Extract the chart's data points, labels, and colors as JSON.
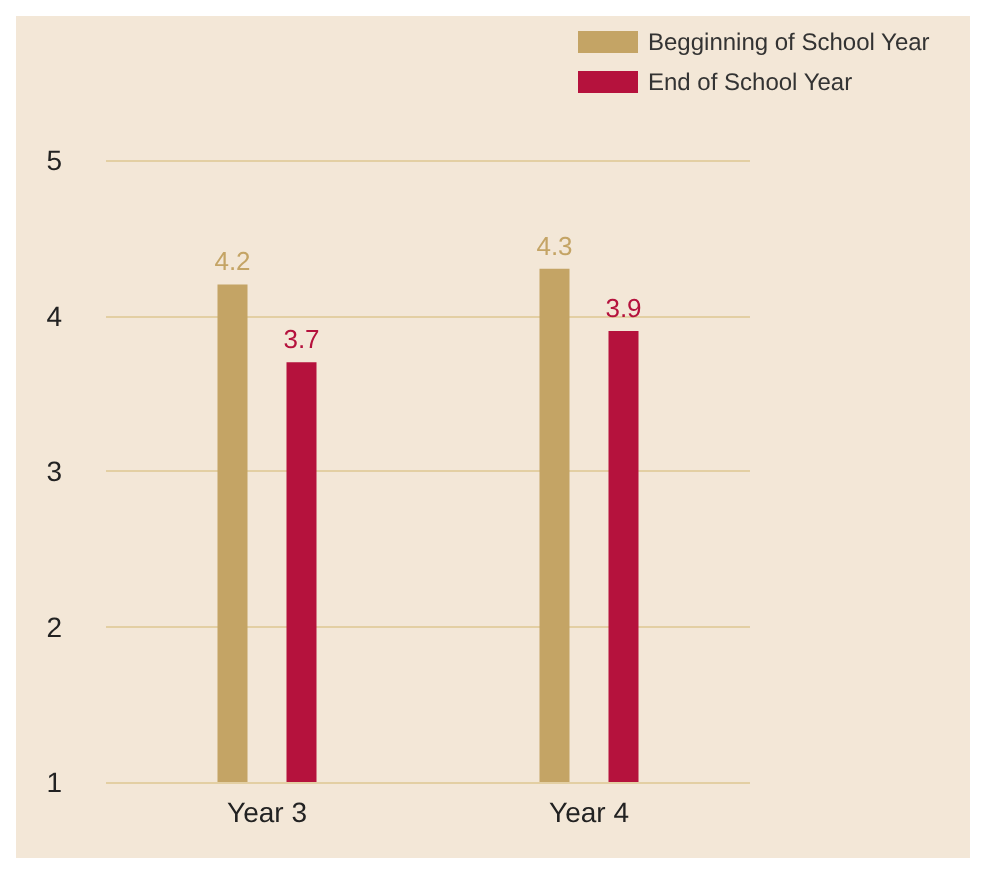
{
  "chart_data": {
    "type": "bar",
    "categories": [
      "Year 3",
      "Year 4"
    ],
    "series": [
      {
        "name": "Begginning of School Year",
        "color": "#c4a465",
        "values": [
          4.2,
          4.3
        ]
      },
      {
        "name": "End of School Year",
        "color": "#b5123d",
        "values": [
          3.7,
          3.9
        ]
      }
    ],
    "ylim": [
      1,
      5
    ],
    "yticks": [
      1,
      2,
      3,
      4,
      5
    ],
    "grid": "y",
    "legend": "top right",
    "data_labels": true
  }
}
